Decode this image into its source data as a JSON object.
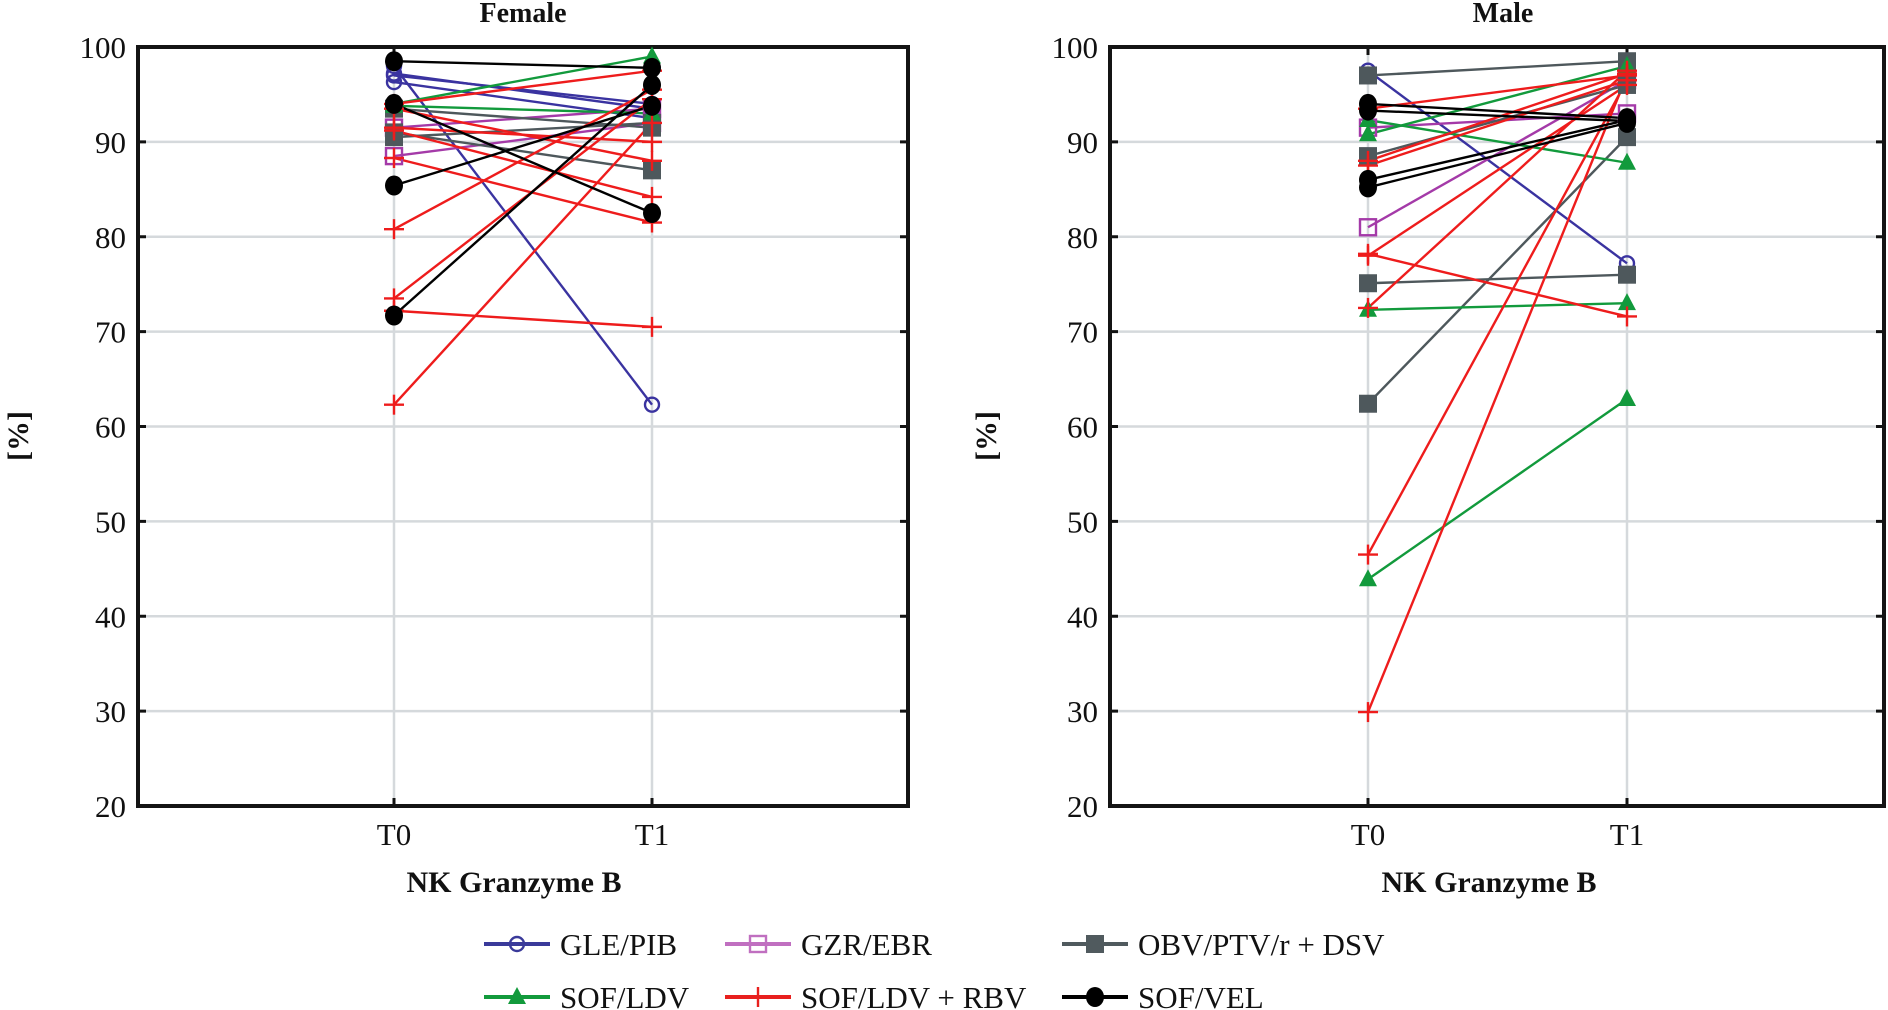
{
  "chart_data": [
    {
      "type": "line",
      "title": "Female",
      "xlabel": "NK Granzyme B",
      "ylabel": "[%]",
      "categories": [
        "T0",
        "T1"
      ],
      "ylim": [
        20,
        100
      ],
      "yticks": [
        20,
        30,
        40,
        50,
        60,
        70,
        80,
        90,
        100
      ],
      "grid": true,
      "series": [
        {
          "name": "GLE/PIB",
          "lines": [
            [
              97.2,
              93.5
            ],
            [
              96.3,
              92.5
            ],
            [
              97.0,
              94.0
            ],
            [
              98.0,
              62.3
            ]
          ]
        },
        {
          "name": "GZR/EBR",
          "lines": [
            [
              91.5,
              93.5
            ],
            [
              88.5,
              92.0
            ]
          ]
        },
        {
          "name": "OBV/PTV/r + DSV",
          "lines": [
            [
              90.5,
              92.0
            ],
            [
              91.0,
              87.0
            ],
            [
              93.5,
              91.5
            ]
          ]
        },
        {
          "name": "SOF/LDV",
          "lines": [
            [
              94.0,
              99.0
            ],
            [
              93.8,
              93.0
            ]
          ]
        },
        {
          "name": "SOF/LDV + RBV",
          "lines": [
            [
              91.5,
              90.0
            ],
            [
              88.3,
              81.5
            ],
            [
              80.8,
              95.5
            ],
            [
              73.5,
              94.5
            ],
            [
              62.3,
              92.0
            ],
            [
              72.2,
              70.5
            ],
            [
              93.5,
              88.0
            ],
            [
              91.2,
              84.2
            ],
            [
              94.0,
              97.5
            ]
          ]
        },
        {
          "name": "SOF/VEL",
          "lines": [
            [
              98.5,
              97.8
            ],
            [
              94.0,
              82.5
            ],
            [
              85.4,
              93.8
            ],
            [
              71.7,
              96.0
            ]
          ]
        }
      ]
    },
    {
      "type": "line",
      "title": "Male",
      "xlabel": "NK Granzyme B",
      "ylabel": "[%]",
      "categories": [
        "T0",
        "T1"
      ],
      "ylim": [
        20,
        100
      ],
      "yticks": [
        20,
        30,
        40,
        50,
        60,
        70,
        80,
        90,
        100
      ],
      "grid": true,
      "series": [
        {
          "name": "GLE/PIB",
          "lines": [
            [
              97.5,
              77.2
            ]
          ]
        },
        {
          "name": "GZR/EBR",
          "lines": [
            [
              91.5,
              93.0
            ],
            [
              81.0,
              96.5
            ]
          ]
        },
        {
          "name": "OBV/PTV/r + DSV",
          "lines": [
            [
              97.0,
              98.5
            ],
            [
              88.5,
              96.0
            ],
            [
              75.1,
              76.0
            ],
            [
              62.4,
              90.5
            ]
          ]
        },
        {
          "name": "SOF/LDV",
          "lines": [
            [
              92.3,
              87.8
            ],
            [
              90.8,
              98.0
            ],
            [
              72.3,
              73.0
            ],
            [
              43.9,
              62.9
            ]
          ]
        },
        {
          "name": "SOF/LDV + RBV",
          "lines": [
            [
              93.5,
              97.0
            ],
            [
              87.5,
              96.5
            ],
            [
              78.2,
              71.6
            ],
            [
              78.0,
              96.0
            ],
            [
              72.5,
              97.5
            ],
            [
              46.5,
              96.5
            ],
            [
              29.9,
              97.0
            ],
            [
              88.0,
              97.2
            ]
          ]
        },
        {
          "name": "SOF/VEL",
          "lines": [
            [
              94.0,
              92.5
            ],
            [
              93.3,
              92.2
            ],
            [
              86.0,
              92.3
            ],
            [
              85.2,
              92.0
            ]
          ]
        }
      ]
    }
  ],
  "legend": {
    "placement": "bottom-center",
    "items": [
      {
        "label": "GLE/PIB",
        "marker": "open-circle",
        "color": "#3a3a9a"
      },
      {
        "label": "GZR/EBR",
        "marker": "open-square",
        "color": "#c06fc0"
      },
      {
        "label": "OBV/PTV/r + DSV",
        "marker": "filled-square",
        "color": "#505a5e"
      },
      {
        "label": "SOF/LDV",
        "marker": "filled-triangle",
        "color": "#129a3c"
      },
      {
        "label": "SOF/LDV + RBV",
        "marker": "plus",
        "color": "#e8201e"
      },
      {
        "label": "SOF/VEL",
        "marker": "filled-circle",
        "color": "#000000"
      }
    ]
  },
  "series_styles": {
    "GLE/PIB": {
      "marker": "open-circle",
      "color": "#3a33a0"
    },
    "GZR/EBR": {
      "marker": "open-square",
      "color": "#a43aa8"
    },
    "OBV/PTV/r + DSV": {
      "marker": "filled-square",
      "color": "#4e585c"
    },
    "SOF/LDV": {
      "marker": "filled-triangle",
      "color": "#129a3c"
    },
    "SOF/LDV + RBV": {
      "marker": "plus",
      "color": "#ee1c1c"
    },
    "SOF/VEL": {
      "marker": "filled-circle",
      "color": "#000000"
    }
  }
}
